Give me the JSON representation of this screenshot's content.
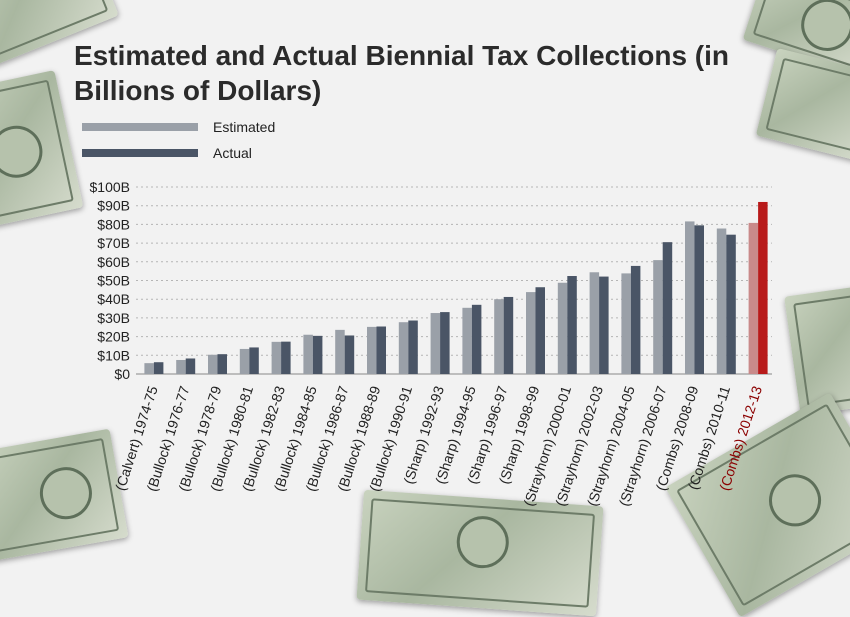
{
  "chart_data": {
    "type": "bar",
    "title": "Estimated and Actual Biennial Tax Collections (in Billions of Dollars)",
    "xlabel": "",
    "ylabel": "",
    "ylim": [
      0,
      100
    ],
    "yticks": [
      "$0",
      "$10B",
      "$20B",
      "$30B",
      "$40B",
      "$50B",
      "$60B",
      "$70B",
      "$80B",
      "$90B",
      "$100B"
    ],
    "grid": true,
    "legend_position": "top-left",
    "categories": [
      "(Calvert) 1974-75",
      "(Bullock) 1976-77",
      "(Bullock) 1978-79",
      "(Bullock) 1980-81",
      "(Bullock) 1982-83",
      "(Bullock) 1984-85",
      "(Bullock) 1986-87",
      "(Bullock) 1988-89",
      "(Bullock) 1990-91",
      "(Sharp) 1992-93",
      "(Sharp) 1994-95",
      "(Sharp) 1996-97",
      "(Sharp) 1998-99",
      "(Strayhorn) 2000-01",
      "(Strayhorn) 2002-03",
      "(Strayhorn) 2004-05",
      "(Strayhorn) 2006-07",
      "(Combs) 2008-09",
      "(Combs) 2010-11",
      "(Combs) 2012-13"
    ],
    "highlight_category": "(Combs) 2012-13",
    "series": [
      {
        "name": "Estimated",
        "color": "#9aa0a8",
        "values": [
          5.8,
          7.5,
          10.3,
          13.4,
          17.2,
          21.0,
          23.6,
          25.2,
          27.7,
          32.6,
          35.4,
          40.0,
          43.8,
          48.8,
          54.4,
          53.8,
          60.9,
          81.6,
          77.8,
          80.8
        ]
      },
      {
        "name": "Actual",
        "color": "#4a5566",
        "values": [
          6.3,
          8.3,
          10.6,
          14.2,
          17.3,
          20.4,
          20.6,
          25.4,
          28.6,
          33.1,
          37.0,
          41.2,
          46.4,
          52.4,
          52.1,
          57.8,
          70.5,
          79.5,
          74.5,
          92.0
        ]
      }
    ],
    "highlight_colors": {
      "estimated": "#c98a8a",
      "actual": "#b81a1a",
      "label": "#8b0000"
    }
  }
}
